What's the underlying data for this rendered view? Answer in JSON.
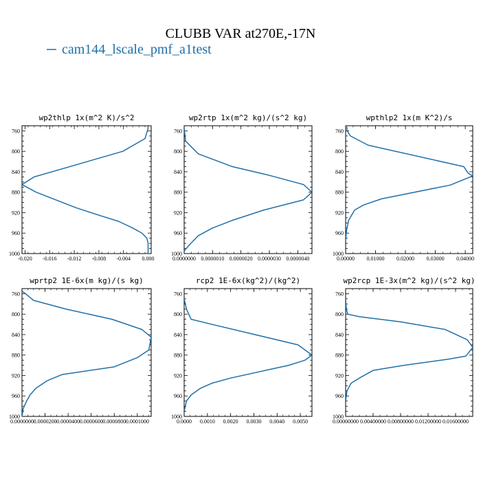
{
  "title": "CLUBB VAR at270E,-17N",
  "legend": {
    "label": "cam144_lscale_pmf_a1test",
    "color": "#1f6fa8"
  },
  "chart_data": [
    {
      "type": "line",
      "title": "wp2thlp  1x(m^2 K)/s^2",
      "xlim": [
        -0.0205,
        0.0005
      ],
      "xticks": [
        "-0.020",
        "-0.016",
        "-0.012",
        "-0.008",
        "-0.004",
        "0.000"
      ],
      "xtick_values": [
        -0.02,
        -0.016,
        -0.012,
        -0.008,
        -0.004,
        0.0
      ],
      "ylim": [
        1000,
        750
      ],
      "yticks": [
        "760",
        "800",
        "840",
        "880",
        "920",
        "960",
        "1000"
      ],
      "series": [
        {
          "x": [
            0.0,
            -0.0005,
            -0.0041,
            -0.0185,
            -0.0205,
            -0.0182,
            -0.0118,
            -0.008,
            -0.0048,
            -0.0025,
            -0.001,
            -0.0002,
            0.0,
            0.0,
            0.0
          ],
          "y": [
            755,
            775,
            800,
            850,
            865,
            880,
            910,
            925,
            937,
            950,
            960,
            970,
            980,
            992,
            1000
          ]
        }
      ]
    },
    {
      "type": "line",
      "title": "wp2rtp  1x(m^2 kg)/(s^2 kg)",
      "xlim": [
        0,
        4.5e-06
      ],
      "xticks": [
        "0.0000000",
        "0.0000010",
        "0.0000020",
        "0.0000030",
        "0.0000040"
      ],
      "xtick_values": [
        0.0,
        1e-06,
        2e-06,
        3e-06,
        4e-06
      ],
      "ylim": [
        1000,
        750
      ],
      "yticks": [
        "760",
        "800",
        "840",
        "880",
        "920",
        "960",
        "1000"
      ],
      "series": [
        {
          "x": [
            0.0,
            5e-08,
            5e-07,
            1.7e-06,
            3e-06,
            4.2e-06,
            4.5e-06,
            4.2e-06,
            2.8e-06,
            1.7e-06,
            1e-06,
            5e-07,
            2e-07,
            0.0
          ],
          "y": [
            755,
            780,
            805,
            830,
            847,
            865,
            880,
            895,
            915,
            935,
            950,
            965,
            982,
            995
          ]
        }
      ]
    },
    {
      "type": "line",
      "title": "wpthlp2  1x(m K^2)/s",
      "xlim": [
        0,
        0.0425
      ],
      "xticks": [
        "0.00000",
        "0.01000",
        "0.02000",
        "0.03000",
        "0.04000"
      ],
      "xtick_values": [
        0.0,
        0.01,
        0.02,
        0.03,
        0.04
      ],
      "ylim": [
        1000,
        750
      ],
      "yticks": [
        "760",
        "800",
        "840",
        "880",
        "920",
        "960",
        "1000"
      ],
      "series": [
        {
          "x": [
            0.0004,
            0.0005,
            0.0016,
            0.0075,
            0.0395,
            0.041,
            0.0425,
            0.035,
            0.012,
            0.006,
            0.003,
            0.001,
            0.0003,
            0.0
          ],
          "y": [
            752,
            760,
            770,
            788,
            830,
            843,
            848,
            866,
            893,
            905,
            915,
            935,
            955,
            975
          ]
        }
      ]
    },
    {
      "type": "line",
      "title": "wprtp2  1E-6x(m kg)/(s kg)",
      "xlim": [
        0,
        0.000112
      ],
      "xticks": [
        "0.0000000",
        "0.0000200",
        "0.0000400",
        "0.0000600",
        "0.0000800",
        "0.0001000"
      ],
      "xtick_values": [
        0.0,
        2e-05,
        4e-05,
        6e-05,
        8e-05,
        0.0001
      ],
      "ylim": [
        1000,
        750
      ],
      "yticks": [
        "760",
        "800",
        "840",
        "880",
        "920",
        "960",
        "1000"
      ],
      "series": [
        {
          "x": [
            0.0,
            3e-06,
            1e-05,
            3.8e-05,
            7.8e-05,
            0.000104,
            0.000112,
            0.00011,
            0.0001,
            8e-05,
            3.5e-05,
            2.2e-05,
            1.2e-05,
            7e-06,
            4e-06,
            1e-06,
            0.0
          ],
          "y": [
            755,
            760,
            773,
            790,
            810,
            830,
            845,
            870,
            885,
            903,
            918,
            930,
            945,
            958,
            970,
            985,
            1000
          ]
        }
      ]
    },
    {
      "type": "line",
      "title": "rcp2  1E-6x(kg^2)/(kg^2)",
      "xlim": [
        0,
        0.0055
      ],
      "xticks": [
        "0.0000",
        "0.0010",
        "0.0020",
        "0.0030",
        "0.0040",
        "0.0050"
      ],
      "xtick_values": [
        0.0,
        0.001,
        0.002,
        0.003,
        0.004,
        0.005
      ],
      "ylim": [
        1000,
        750
      ],
      "yticks": [
        "760",
        "800",
        "840",
        "880",
        "920",
        "960",
        "1000"
      ],
      "series": [
        {
          "x": [
            0.0,
            0.0001,
            0.0003,
            0.0012,
            0.0049,
            0.0055,
            0.0052,
            0.0045,
            0.0035,
            0.002,
            0.0012,
            0.0007,
            0.0003,
            0.0001,
            0.0
          ],
          "y": [
            770,
            790,
            810,
            820,
            860,
            880,
            890,
            900,
            910,
            925,
            935,
            945,
            958,
            970,
            990
          ]
        }
      ]
    },
    {
      "type": "line",
      "title": "wp2rcp  1E-3x(m^2 kg)/(s^2 kg)",
      "xlim": [
        0,
        0.0185
      ],
      "xticks": [
        "0.00000000",
        "0.00400000",
        "0.00800000",
        "0.01200000",
        "0.01600000"
      ],
      "xtick_values": [
        0.0,
        0.004,
        0.008,
        0.012,
        0.016
      ],
      "ylim": [
        1000,
        750
      ],
      "yticks": [
        "760",
        "800",
        "840",
        "880",
        "920",
        "960",
        "1000"
      ],
      "series": [
        {
          "x": [
            0.0,
            0.0001,
            0.0003,
            0.002,
            0.008,
            0.0145,
            0.0177,
            0.0185,
            0.0175,
            0.015,
            0.0085,
            0.004,
            0.002,
            0.0008,
            0.0002,
            0.0
          ],
          "y": [
            770,
            790,
            800,
            805,
            815,
            830,
            850,
            865,
            882,
            888,
            900,
            910,
            925,
            935,
            950,
            970
          ]
        }
      ]
    }
  ]
}
